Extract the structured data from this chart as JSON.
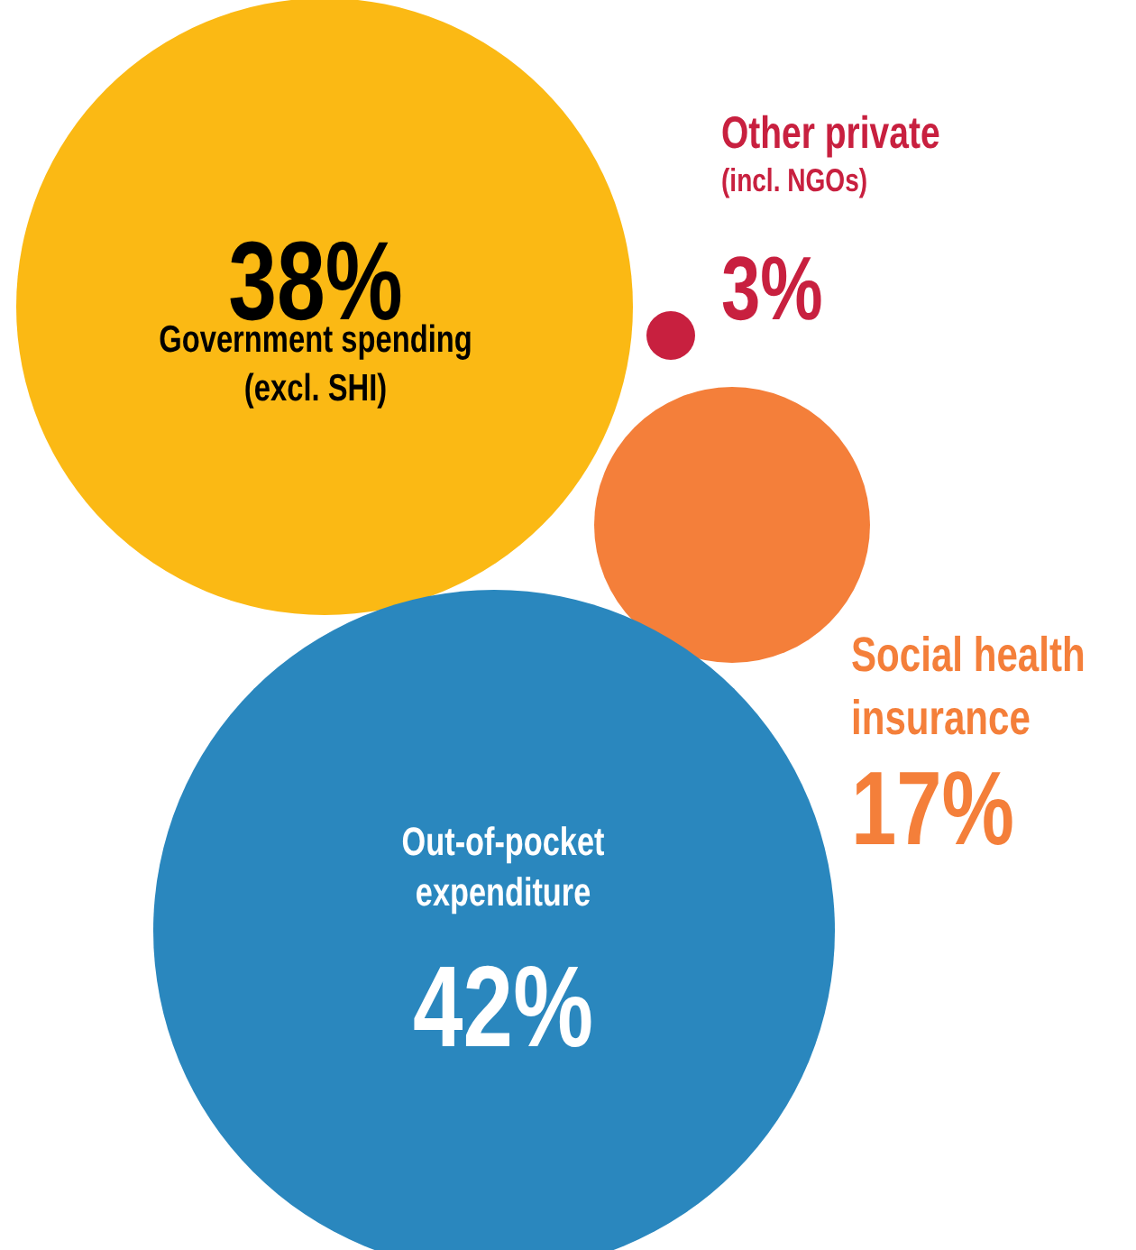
{
  "chart_data": {
    "type": "other",
    "categories": [
      "Government spending\n(excl. SHI)",
      "Other private\n(incl. NGOs)",
      "Social health\ninsurance",
      "Out-of-pocket\nexpenditure"
    ],
    "values": [
      38,
      3,
      17,
      42
    ],
    "colors": [
      "#fbb914",
      "#c8203f",
      "#f47f3a",
      "#2a87be"
    ],
    "value_labels": [
      "38%",
      "3%",
      "17%",
      "42%"
    ]
  }
}
